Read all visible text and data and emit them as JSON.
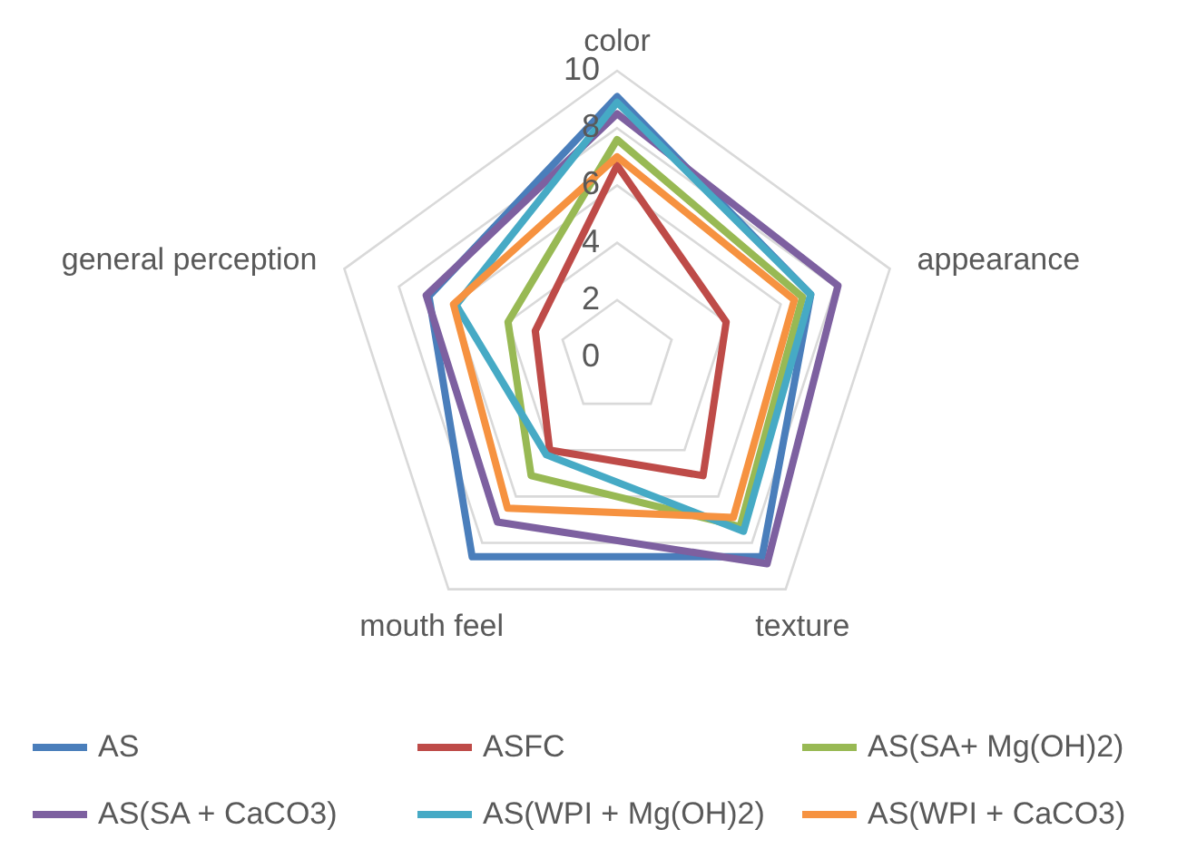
{
  "chart_data": {
    "type": "radar",
    "categories": [
      "color",
      "appearance",
      "texture",
      "mouth feel",
      "general perception"
    ],
    "ylim": [
      0,
      10
    ],
    "yticks": [
      0,
      2,
      4,
      6,
      8,
      10
    ],
    "grid": true,
    "legend": "bottom",
    "line_style": "solid",
    "marker": "none",
    "series": [
      {
        "name": "AS",
        "color": "#4a7ebb",
        "values": [
          9.1,
          7.1,
          8.6,
          8.6,
          6.9
        ]
      },
      {
        "name": "ASFC",
        "color": "#be4b48",
        "values": [
          6.7,
          4.0,
          5.1,
          4.0,
          3.0
        ]
      },
      {
        "name": "AS(SA+ Mg(OH)2)",
        "color": "#98b954",
        "values": [
          7.6,
          6.8,
          7.3,
          5.1,
          4.0
        ]
      },
      {
        "name": "AS(SA + CaCO3)",
        "color": "#7d60a0",
        "values": [
          8.5,
          8.1,
          8.9,
          7.1,
          7.0
        ]
      },
      {
        "name": "AS(WPI + Mg(OH)2)",
        "color": "#46aac5",
        "values": [
          8.9,
          7.1,
          7.5,
          4.2,
          5.9
        ]
      },
      {
        "name": "AS(WPI + CaCO3)",
        "color": "#f69240",
        "values": [
          7.0,
          6.5,
          6.9,
          6.5,
          6.0
        ]
      }
    ]
  }
}
